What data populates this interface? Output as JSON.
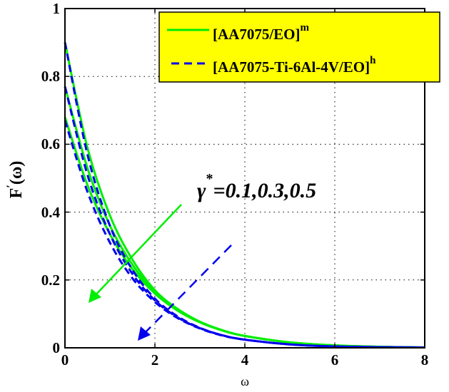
{
  "chart_data": {
    "type": "line",
    "title": "",
    "xlabel": "ω",
    "ylabel": "F′(ω)",
    "xlim": [
      0,
      8
    ],
    "ylim": [
      0,
      1
    ],
    "xticks": [
      "0",
      "2",
      "4",
      "6",
      "8"
    ],
    "yticks": [
      "0",
      "0.2",
      "0.4",
      "0.6",
      "0.8",
      "1"
    ],
    "grid": true,
    "legend_position": "upper right",
    "annotation": "γ*=0.1,0.3,0.5",
    "x": [
      0,
      0.5,
      1,
      1.5,
      2,
      2.5,
      3,
      3.5,
      4,
      5,
      6,
      7,
      8
    ],
    "series": [
      {
        "name": "[AA7075/EO]^m (γ*=0.1)",
        "color": "#00ee00",
        "style": "solid",
        "values": [
          0.9,
          0.59,
          0.39,
          0.26,
          0.17,
          0.115,
          0.077,
          0.052,
          0.035,
          0.016,
          0.007,
          0.003,
          0.001
        ]
      },
      {
        "name": "[AA7075/EO]^m (γ*=0.3)",
        "color": "#00ee00",
        "style": "solid",
        "values": [
          0.77,
          0.53,
          0.36,
          0.245,
          0.165,
          0.112,
          0.076,
          0.051,
          0.035,
          0.016,
          0.007,
          0.003,
          0.001
        ]
      },
      {
        "name": "[AA7075/EO]^m (γ*=0.5)",
        "color": "#00ee00",
        "style": "solid",
        "values": [
          0.68,
          0.48,
          0.335,
          0.232,
          0.16,
          0.11,
          0.075,
          0.051,
          0.035,
          0.016,
          0.007,
          0.003,
          0.001
        ]
      },
      {
        "name": "[AA7075-Ti-6Al-4V/EO]^h (γ*=0.1)",
        "color": "#0000ee",
        "style": "dashed",
        "values": [
          0.9,
          0.57,
          0.36,
          0.23,
          0.145,
          0.093,
          0.059,
          0.037,
          0.024,
          0.01,
          0.004,
          0.002,
          0.001
        ]
      },
      {
        "name": "[AA7075-Ti-6Al-4V/EO]^h (γ*=0.3)",
        "color": "#0000ee",
        "style": "dashed",
        "values": [
          0.77,
          0.51,
          0.335,
          0.218,
          0.14,
          0.09,
          0.058,
          0.037,
          0.024,
          0.01,
          0.004,
          0.002,
          0.001
        ]
      },
      {
        "name": "[AA7075-Ti-6Al-4V/EO]^h (γ*=0.5)",
        "color": "#0000ee",
        "style": "dashed",
        "values": [
          0.67,
          0.46,
          0.31,
          0.205,
          0.135,
          0.088,
          0.057,
          0.036,
          0.024,
          0.01,
          0.004,
          0.002,
          0.001
        ]
      }
    ]
  },
  "legend": {
    "items": [
      {
        "label": "[AA7075/EO]",
        "sup": "m",
        "color": "#00ee00",
        "style": "solid"
      },
      {
        "label": "[AA7075-Ti-6Al-4V/EO]",
        "sup": "h",
        "color": "#0000ee",
        "style": "dashed"
      }
    ],
    "background": "#ffff00"
  },
  "annotation": {
    "symbol": "γ",
    "sup": "*",
    "text": "=0.1,0.3,0.5"
  },
  "axes": {
    "xlabel": "ω",
    "ylabel_main": "F",
    "ylabel_prime": "′",
    "ylabel_arg": "(ω)",
    "xticks": [
      "0",
      "2",
      "4",
      "6",
      "8"
    ],
    "yticks": [
      "0",
      "0.2",
      "0.4",
      "0.6",
      "0.8",
      "1"
    ]
  }
}
